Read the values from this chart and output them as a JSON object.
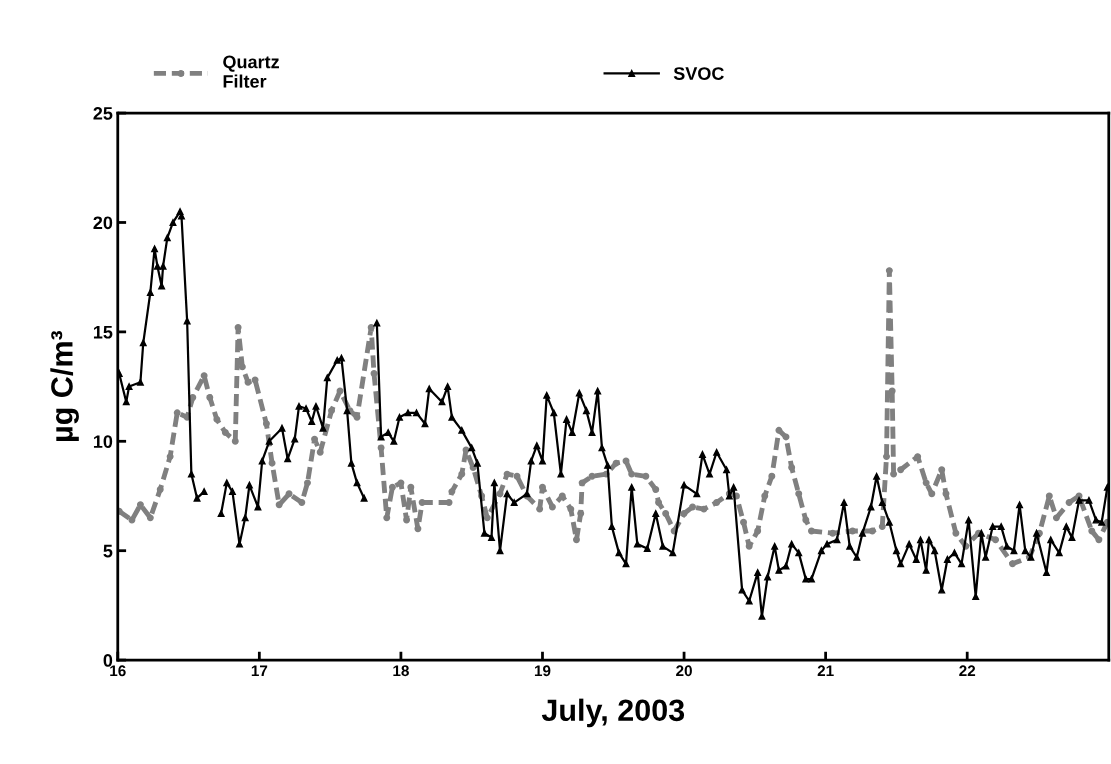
{
  "chart_data": {
    "type": "line",
    "xlabel": "July, 2003",
    "ylabel": "µg C/m³",
    "xlim": [
      16,
      23
    ],
    "xticks": [
      16,
      17,
      18,
      19,
      20,
      21,
      22
    ],
    "ylim": [
      0,
      25
    ],
    "yticks": [
      0,
      5,
      10,
      15,
      20,
      25
    ],
    "grid": false,
    "legend": "top",
    "series": [
      {
        "name": "Quartz\nFilter",
        "color": "#808080",
        "marker": "circle",
        "line_style": "dashed",
        "x": [
          16.01,
          16.1,
          16.16,
          16.23,
          16.3,
          16.37,
          16.42,
          16.49,
          16.53,
          16.61,
          16.65,
          16.7,
          16.76,
          16.83,
          16.85,
          16.88,
          16.92,
          16.97,
          17.05,
          17.09,
          17.14,
          17.21,
          17.3,
          17.34,
          17.39,
          17.43,
          17.51,
          17.57,
          17.64,
          17.69,
          17.79,
          17.81,
          17.86,
          17.9,
          17.94,
          18.0,
          18.04,
          18.07,
          18.12,
          18.15,
          18.34,
          18.36,
          18.43,
          18.46,
          18.51,
          18.57,
          18.61,
          18.7,
          18.75,
          18.82,
          18.89,
          18.98,
          19.0,
          19.07,
          19.14,
          19.2,
          19.24,
          19.27,
          19.28,
          19.35,
          19.45,
          19.52,
          19.59,
          19.63,
          19.73,
          19.8,
          19.82,
          19.87,
          19.93,
          20.0,
          20.06,
          20.14,
          20.23,
          20.32,
          20.37,
          20.42,
          20.46,
          20.52,
          20.57,
          20.62,
          20.67,
          20.72,
          20.76,
          20.81,
          20.86,
          20.9,
          21.05,
          21.19,
          21.33,
          21.4,
          21.43,
          21.45,
          21.47,
          21.48,
          21.53,
          21.65,
          21.71,
          21.75,
          21.82,
          21.85,
          21.92,
          21.99,
          22.08,
          22.2,
          22.32,
          22.44,
          22.51,
          22.58,
          22.63,
          22.72,
          22.79,
          22.88,
          22.93,
          22.99
        ],
        "values": [
          6.8,
          6.4,
          7.1,
          6.5,
          7.8,
          9.3,
          11.3,
          11.1,
          12.0,
          13.0,
          12.0,
          11.0,
          10.4,
          10.0,
          15.2,
          13.4,
          12.7,
          12.8,
          10.8,
          9.0,
          7.1,
          7.6,
          7.2,
          8.1,
          10.1,
          9.5,
          11.4,
          12.3,
          11.4,
          11.1,
          15.2,
          13.1,
          9.7,
          6.5,
          7.9,
          8.1,
          6.4,
          7.9,
          6.0,
          7.2,
          7.2,
          7.7,
          8.5,
          9.6,
          8.8,
          7.5,
          6.5,
          7.6,
          8.5,
          8.4,
          7.5,
          6.9,
          7.9,
          7.0,
          7.5,
          6.9,
          5.5,
          6.7,
          8.1,
          8.4,
          8.5,
          9.0,
          9.1,
          8.5,
          8.4,
          7.8,
          7.2,
          6.7,
          5.9,
          6.7,
          7.0,
          6.9,
          7.2,
          7.6,
          7.5,
          6.3,
          5.2,
          5.9,
          7.5,
          8.4,
          10.5,
          10.2,
          8.8,
          7.6,
          6.4,
          5.9,
          5.8,
          5.9,
          5.9,
          6.1,
          9.3,
          17.8,
          12.3,
          8.5,
          8.7,
          9.3,
          8.1,
          7.6,
          8.7,
          7.6,
          5.8,
          5.2,
          5.8,
          5.5,
          4.4,
          4.7,
          5.8,
          7.5,
          6.5,
          7.2,
          7.5,
          5.9,
          5.5,
          6.3
        ]
      },
      {
        "name": "SVOC",
        "color": "#000000",
        "marker": "triangle",
        "line_style": "solid",
        "x": [
          16.01,
          16.06,
          16.08,
          16.16,
          16.18,
          16.23,
          16.26,
          16.28,
          16.31,
          16.32,
          16.35,
          16.39,
          16.44,
          16.45,
          16.49,
          16.52,
          16.56,
          16.61,
          16.66,
          16.73,
          16.77,
          16.81,
          16.86,
          16.9,
          16.93,
          16.99,
          17.02,
          17.07,
          17.16,
          17.2,
          17.25,
          17.28,
          17.33,
          17.37,
          17.4,
          17.45,
          17.48,
          17.55,
          17.58,
          17.62,
          17.65,
          17.69,
          17.74,
          17.77,
          17.83,
          17.86,
          17.91,
          17.95,
          17.99,
          18.05,
          18.11,
          18.17,
          18.2,
          18.29,
          18.33,
          18.36,
          18.43,
          18.5,
          18.54,
          18.59,
          18.64,
          18.66,
          18.7,
          18.75,
          18.8,
          18.89,
          18.92,
          18.96,
          19.0,
          19.03,
          19.08,
          19.13,
          19.17,
          19.21,
          19.26,
          19.31,
          19.35,
          19.39,
          19.42,
          19.46,
          19.49,
          19.54,
          19.59,
          19.63,
          19.67,
          19.74,
          19.8,
          19.85,
          19.92,
          20.0,
          20.09,
          20.13,
          20.18,
          20.23,
          20.3,
          20.32,
          20.35,
          20.41,
          20.46,
          20.52,
          20.55,
          20.59,
          20.64,
          20.67,
          20.72,
          20.76,
          20.81,
          20.86,
          20.9,
          20.97,
          21.01,
          21.08,
          21.13,
          21.17,
          21.22,
          21.26,
          21.32,
          21.36,
          21.4,
          21.45,
          21.5,
          21.53,
          21.59,
          21.64,
          21.67,
          21.71,
          21.73,
          21.77,
          21.82,
          21.86,
          21.91,
          21.96,
          22.01,
          22.06,
          22.1,
          22.13,
          22.18,
          22.24,
          22.28,
          22.33,
          22.37,
          22.41,
          22.45,
          22.49,
          22.56,
          22.59,
          22.65,
          22.7,
          22.74,
          22.79,
          22.86,
          22.91,
          22.95,
          22.99
        ],
        "values": [
          13.1,
          11.8,
          12.5,
          12.7,
          14.5,
          16.8,
          18.8,
          18.0,
          17.1,
          18.0,
          19.3,
          20.0,
          20.5,
          20.3,
          15.5,
          8.5,
          7.4,
          7.7,
          null,
          6.7,
          8.1,
          7.7,
          5.3,
          6.5,
          8.0,
          7.0,
          9.1,
          10.0,
          10.6,
          9.2,
          10.1,
          11.6,
          11.5,
          10.9,
          11.6,
          10.6,
          12.9,
          13.7,
          13.8,
          11.4,
          9.0,
          8.1,
          7.4,
          null,
          15.4,
          10.2,
          10.4,
          10.0,
          11.1,
          11.3,
          11.3,
          10.8,
          12.4,
          11.8,
          12.5,
          11.1,
          10.5,
          9.7,
          9.0,
          5.8,
          5.6,
          8.1,
          5.0,
          7.6,
          7.2,
          7.6,
          9.1,
          9.8,
          9.1,
          12.1,
          11.3,
          8.5,
          11.0,
          10.4,
          12.2,
          11.4,
          10.4,
          12.3,
          9.7,
          8.9,
          6.1,
          4.9,
          4.4,
          7.9,
          5.3,
          5.1,
          6.7,
          5.2,
          4.9,
          8.0,
          7.6,
          9.4,
          8.5,
          9.5,
          8.7,
          7.5,
          7.9,
          3.2,
          2.7,
          4.0,
          2.0,
          3.8,
          5.2,
          4.1,
          4.3,
          5.3,
          4.9,
          3.7,
          3.7,
          5.0,
          5.3,
          5.5,
          7.2,
          5.2,
          4.7,
          5.8,
          7.0,
          8.4,
          7.2,
          6.3,
          5.0,
          4.4,
          5.3,
          4.6,
          5.5,
          4.1,
          5.5,
          5.0,
          3.2,
          4.6,
          4.9,
          4.4,
          6.4,
          2.9,
          5.8,
          4.7,
          6.1,
          6.1,
          5.2,
          5.0,
          7.1,
          5.0,
          4.7,
          5.8,
          4.0,
          5.5,
          4.9,
          6.1,
          5.6,
          7.3,
          7.3,
          6.4,
          6.3,
          7.9
        ]
      }
    ]
  }
}
